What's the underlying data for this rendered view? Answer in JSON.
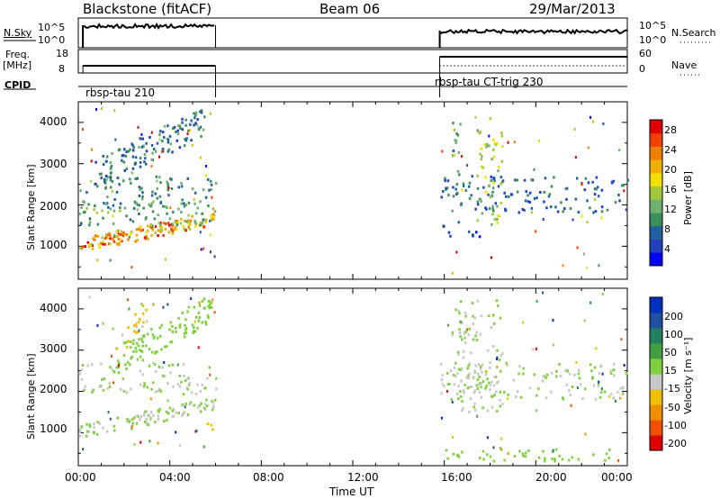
{
  "header": {
    "radar": "Blackstone (fitACF)",
    "beam": "Beam 06",
    "date": "29/Mar/2013"
  },
  "panels": {
    "noise": {
      "left_label": "N.Sky",
      "right_label": "N.Search",
      "left_ticks": [
        "10^5",
        "10^0"
      ],
      "right_ticks": [
        "10^5",
        "10^0"
      ]
    },
    "freq": {
      "left_label_1": "Freq.",
      "left_label_2": "[MHz]",
      "left_ticks": [
        "18",
        "8"
      ],
      "right_label": "Nave",
      "right_ticks": [
        "60",
        "0"
      ]
    },
    "cpid": {
      "label": "CPID",
      "segments": [
        "rbsp-tau 210",
        "rbsp-tau CT-trig 230"
      ]
    }
  },
  "colorbars": {
    "power": {
      "label": "Power [dB]",
      "ticks": [
        "28",
        "24",
        "20",
        "16",
        "12",
        "8",
        "4"
      ],
      "colors": [
        "#0000ff",
        "#2040c0",
        "#205fa0",
        "#3a8f5a",
        "#6fb070",
        "#a0c838",
        "#f0e000",
        "#f0b000",
        "#f08000",
        "#f04000",
        "#e00000"
      ]
    },
    "velocity": {
      "label": "Velocity [m s⁻¹]",
      "ticks": [
        "200",
        "100",
        "50",
        "15",
        "-15",
        "-50",
        "-100",
        "-200"
      ],
      "colors": [
        "#0030c0",
        "#2050a0",
        "#208060",
        "#40a040",
        "#80d040",
        "#c8c8c8",
        "#f0c000",
        "#f09000",
        "#f05000",
        "#e00000"
      ]
    }
  },
  "xaxis": {
    "label": "Time UT",
    "ticks": [
      "00:00",
      "04:00",
      "08:00",
      "12:00",
      "16:00",
      "20:00",
      "00:00"
    ]
  },
  "chart_data": [
    {
      "type": "heatmap",
      "name": "power",
      "xlabel": "Time UT",
      "ylabel": "Slant Range [km]",
      "xlim": [
        0,
        24
      ],
      "ylim": [
        200,
        4500
      ],
      "yticks": [
        1000,
        2000,
        3000,
        4000
      ],
      "zlim": [
        0,
        32
      ],
      "zlabel": "Power [dB]",
      "bands": [
        {
          "x": [
            0.0,
            6.0
          ],
          "y": [
            900,
            1900
          ],
          "z": 26
        },
        {
          "x": [
            0.0,
            6.0
          ],
          "y": [
            1300,
            1900
          ],
          "z": 18
        },
        {
          "x": [
            0.0,
            6.0
          ],
          "y": [
            1500,
            2100
          ],
          "z": 12
        },
        {
          "x": [
            0.0,
            6.0
          ],
          "y": [
            1900,
            2700
          ],
          "z": 10
        },
        {
          "x": [
            0.5,
            5.5
          ],
          "y": [
            2700,
            4300
          ],
          "z": 9
        },
        {
          "x": [
            15.8,
            24.0
          ],
          "y": [
            1800,
            2700
          ],
          "z": 7
        },
        {
          "x": [
            16.3,
            16.7
          ],
          "y": [
            2000,
            4200
          ],
          "z": 12
        },
        {
          "x": [
            17.4,
            18.5
          ],
          "y": [
            1500,
            4100
          ],
          "z": 16
        },
        {
          "x": [
            15.8,
            17.5
          ],
          "y": [
            1200,
            1600
          ],
          "z": 5
        }
      ]
    },
    {
      "type": "heatmap",
      "name": "velocity",
      "xlabel": "Time UT",
      "ylabel": "Slant Range [km]",
      "xlim": [
        0,
        24
      ],
      "ylim": [
        200,
        4500
      ],
      "yticks": [
        1000,
        2000,
        3000,
        4000
      ],
      "zlim": [
        -250,
        250
      ],
      "zlabel": "Velocity [m s⁻¹]",
      "bands": [
        {
          "x": [
            0.0,
            6.0
          ],
          "y": [
            900,
            1900
          ],
          "z": 0
        },
        {
          "x": [
            0.0,
            6.0
          ],
          "y": [
            1900,
            2700
          ],
          "z": 0
        },
        {
          "x": [
            1.5,
            5.8
          ],
          "y": [
            2800,
            4300
          ],
          "z": 20
        },
        {
          "x": [
            1.5,
            3.0
          ],
          "y": [
            2900,
            3700
          ],
          "z": -60
        },
        {
          "x": [
            5.6,
            6.0
          ],
          "y": [
            1000,
            1400
          ],
          "z": -80
        },
        {
          "x": [
            15.8,
            24.0
          ],
          "y": [
            1800,
            2700
          ],
          "z": 0
        },
        {
          "x": [
            16.3,
            18.5
          ],
          "y": [
            1500,
            4200
          ],
          "z": 0
        },
        {
          "x": [
            15.8,
            24.0
          ],
          "y": [
            300,
            600
          ],
          "z": 30
        }
      ]
    }
  ]
}
